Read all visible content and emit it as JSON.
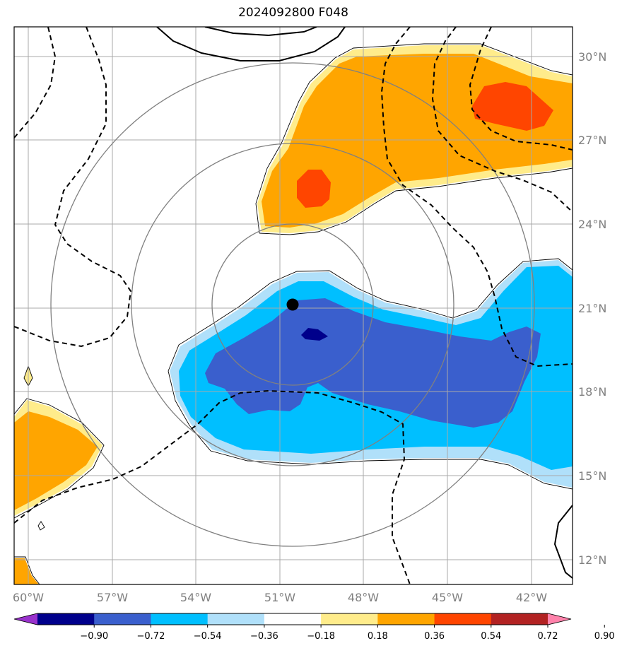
{
  "title": "2024092800 F048",
  "map": {
    "lon_range": [
      -60.0,
      -41.0
    ],
    "lat_range": [
      11.0,
      31.0
    ],
    "lon_ticks": [
      {
        "value": -60,
        "label": "60°W"
      },
      {
        "value": -57,
        "label": "57°W"
      },
      {
        "value": -54,
        "label": "54°W"
      },
      {
        "value": -51,
        "label": "51°W"
      },
      {
        "value": -48,
        "label": "48°W"
      },
      {
        "value": -45,
        "label": "45°W"
      },
      {
        "value": -42,
        "label": "42°W"
      }
    ],
    "lat_ticks": [
      {
        "value": 12,
        "label": "12°N"
      },
      {
        "value": 15,
        "label": "15°N"
      },
      {
        "value": 18,
        "label": "18°N"
      },
      {
        "value": 21,
        "label": "21°N"
      },
      {
        "value": 24,
        "label": "24°N"
      },
      {
        "value": 27,
        "label": "27°N"
      },
      {
        "value": 30,
        "label": "30°N"
      }
    ],
    "storm_center": {
      "lon": -50.5,
      "lat": 21.1
    },
    "grid_on": true
  },
  "colorbar": {
    "labels": [
      "−0.90",
      "−0.72",
      "−0.54",
      "−0.36",
      "−0.18",
      "0.18",
      "0.36",
      "0.54",
      "0.72",
      "0.90"
    ],
    "colors": [
      "#9932cc",
      "#00008b",
      "#3a5fcd",
      "#00bfff",
      "#b0e0fa",
      "#ffffff",
      "#ffec8b",
      "#ffa500",
      "#ff4500",
      "#b22222",
      "#ff82ab"
    ]
  },
  "colors": {
    "orange": "#ffa500",
    "light_yellow": "#ffec8b",
    "red_orange": "#ff4500",
    "deep_sky_blue": "#00bfff",
    "light_blue": "#b0e0fa",
    "royal_blue": "#3a5fcd",
    "navy": "#00008b",
    "grid": "#a9a9a9",
    "ring": "#808080"
  }
}
